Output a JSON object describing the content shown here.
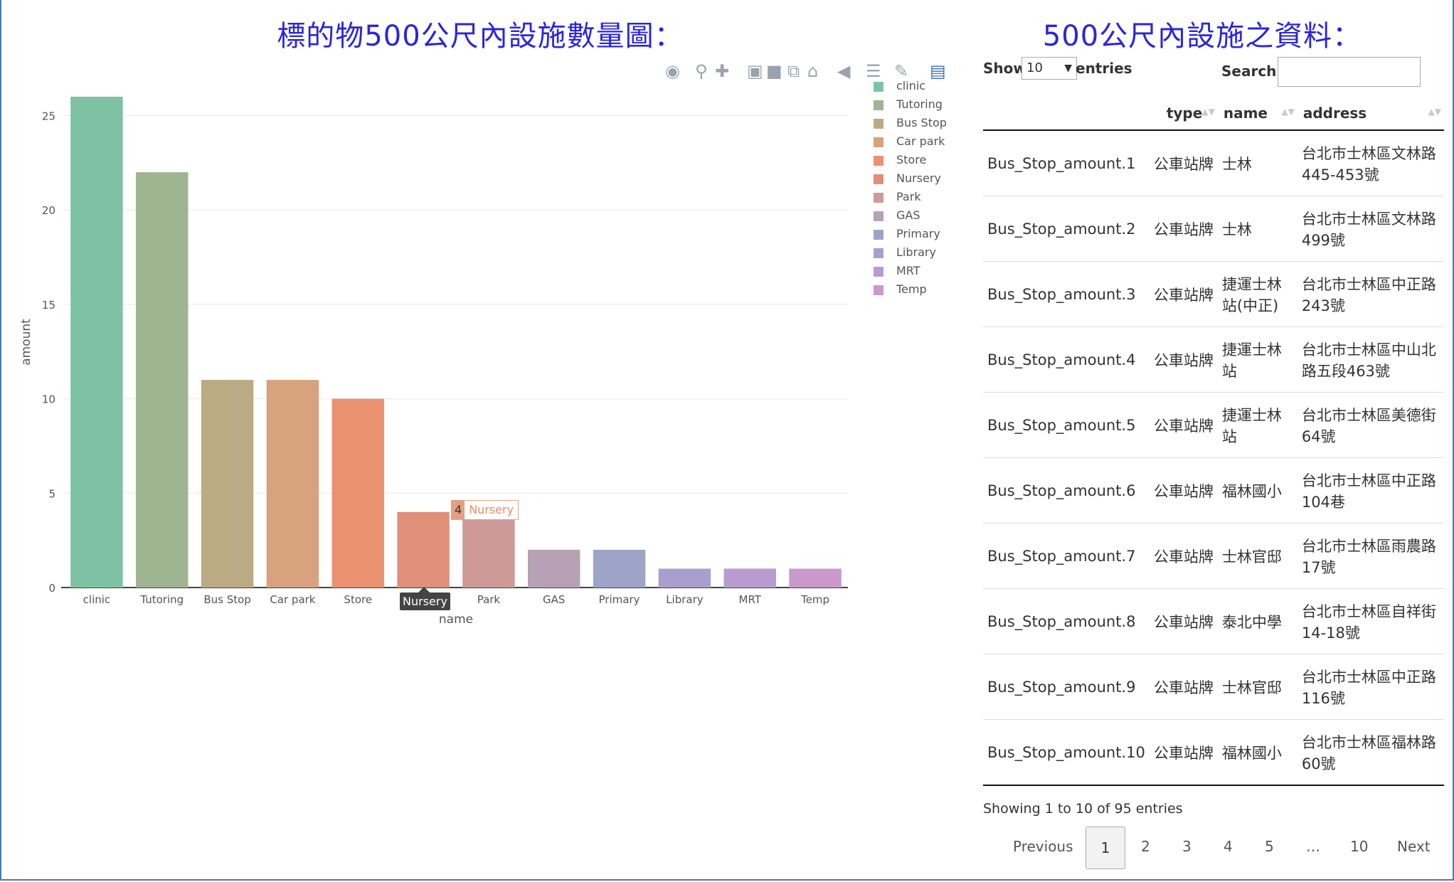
{
  "left_panel": {
    "title": "標的物500公尺內設施數量圖："
  },
  "right_panel": {
    "title": "500公尺內設施之資料："
  },
  "modebar": {
    "icons": [
      "camera-icon",
      "zoom-icon",
      "pan-icon",
      "zoom-in-icon",
      "zoom-out-icon",
      "autoscale-icon",
      "home-icon",
      "spike-icon",
      "compare-icon",
      "hover-icon",
      "plotly-logo-icon"
    ]
  },
  "chart_data": {
    "type": "bar",
    "categories": [
      "clinic",
      "Tutoring",
      "Bus Stop",
      "Car park",
      "Store",
      "Nursery",
      "Park",
      "GAS",
      "Primary",
      "Library",
      "MRT",
      "Temp"
    ],
    "values": [
      26,
      22,
      11,
      11,
      10,
      4,
      4,
      2,
      2,
      1,
      1,
      1
    ],
    "colors": [
      "#7fc2a3",
      "#9fb491",
      "#bbab85",
      "#d7a27d",
      "#ea9270",
      "#e0907a",
      "#cd9a98",
      "#b7a1b4",
      "#9da4c8",
      "#a99fce",
      "#b89cd0",
      "#cb98cb"
    ],
    "xlabel": "name",
    "ylabel": "amount",
    "ylim": [
      0,
      26
    ],
    "yticks": [
      0,
      5,
      10,
      15,
      20,
      25
    ],
    "grid": true,
    "legend": {
      "placement": "right",
      "entries": [
        "clinic",
        "Tutoring",
        "Bus Stop",
        "Car park",
        "Store",
        "Nursery",
        "Park",
        "GAS",
        "Primary",
        "Library",
        "MRT",
        "Temp"
      ]
    },
    "hover": {
      "value": "4",
      "label": "Nursery",
      "x_label": "Nursery"
    }
  },
  "datatable": {
    "show_label": "Show",
    "length_value": "10",
    "entries_label": "entries",
    "search_label": "Search:",
    "search_value": "",
    "columns": [
      "",
      "type",
      "name",
      "address"
    ],
    "rows": [
      {
        "id": "Bus_Stop_amount.1",
        "type": "公車站牌",
        "name": "士林",
        "address": "台北市士林區文林路445-453號"
      },
      {
        "id": "Bus_Stop_amount.2",
        "type": "公車站牌",
        "name": "士林",
        "address": "台北市士林區文林路499號"
      },
      {
        "id": "Bus_Stop_amount.3",
        "type": "公車站牌",
        "name": "捷運士林站(中正)",
        "address": "台北市士林區中正路243號"
      },
      {
        "id": "Bus_Stop_amount.4",
        "type": "公車站牌",
        "name": "捷運士林站",
        "address": "台北市士林區中山北路五段463號"
      },
      {
        "id": "Bus_Stop_amount.5",
        "type": "公車站牌",
        "name": "捷運士林站",
        "address": "台北市士林區美德街64號"
      },
      {
        "id": "Bus_Stop_amount.6",
        "type": "公車站牌",
        "name": "福林國小",
        "address": "台北市士林區中正路104巷"
      },
      {
        "id": "Bus_Stop_amount.7",
        "type": "公車站牌",
        "name": "士林官邸",
        "address": "台北市士林區雨農路17號"
      },
      {
        "id": "Bus_Stop_amount.8",
        "type": "公車站牌",
        "name": "泰北中學",
        "address": "台北市士林區自祥街14-18號"
      },
      {
        "id": "Bus_Stop_amount.9",
        "type": "公車站牌",
        "name": "士林官邸",
        "address": "台北市士林區中正路116號"
      },
      {
        "id": "Bus_Stop_amount.10",
        "type": "公車站牌",
        "name": "福林國小",
        "address": "台北市士林區福林路60號"
      }
    ],
    "info": "Showing 1 to 10 of 95 entries",
    "pagination": {
      "previous": "Previous",
      "pages": [
        "1",
        "2",
        "3",
        "4",
        "5",
        "…",
        "10"
      ],
      "current": "1",
      "next": "Next"
    }
  }
}
